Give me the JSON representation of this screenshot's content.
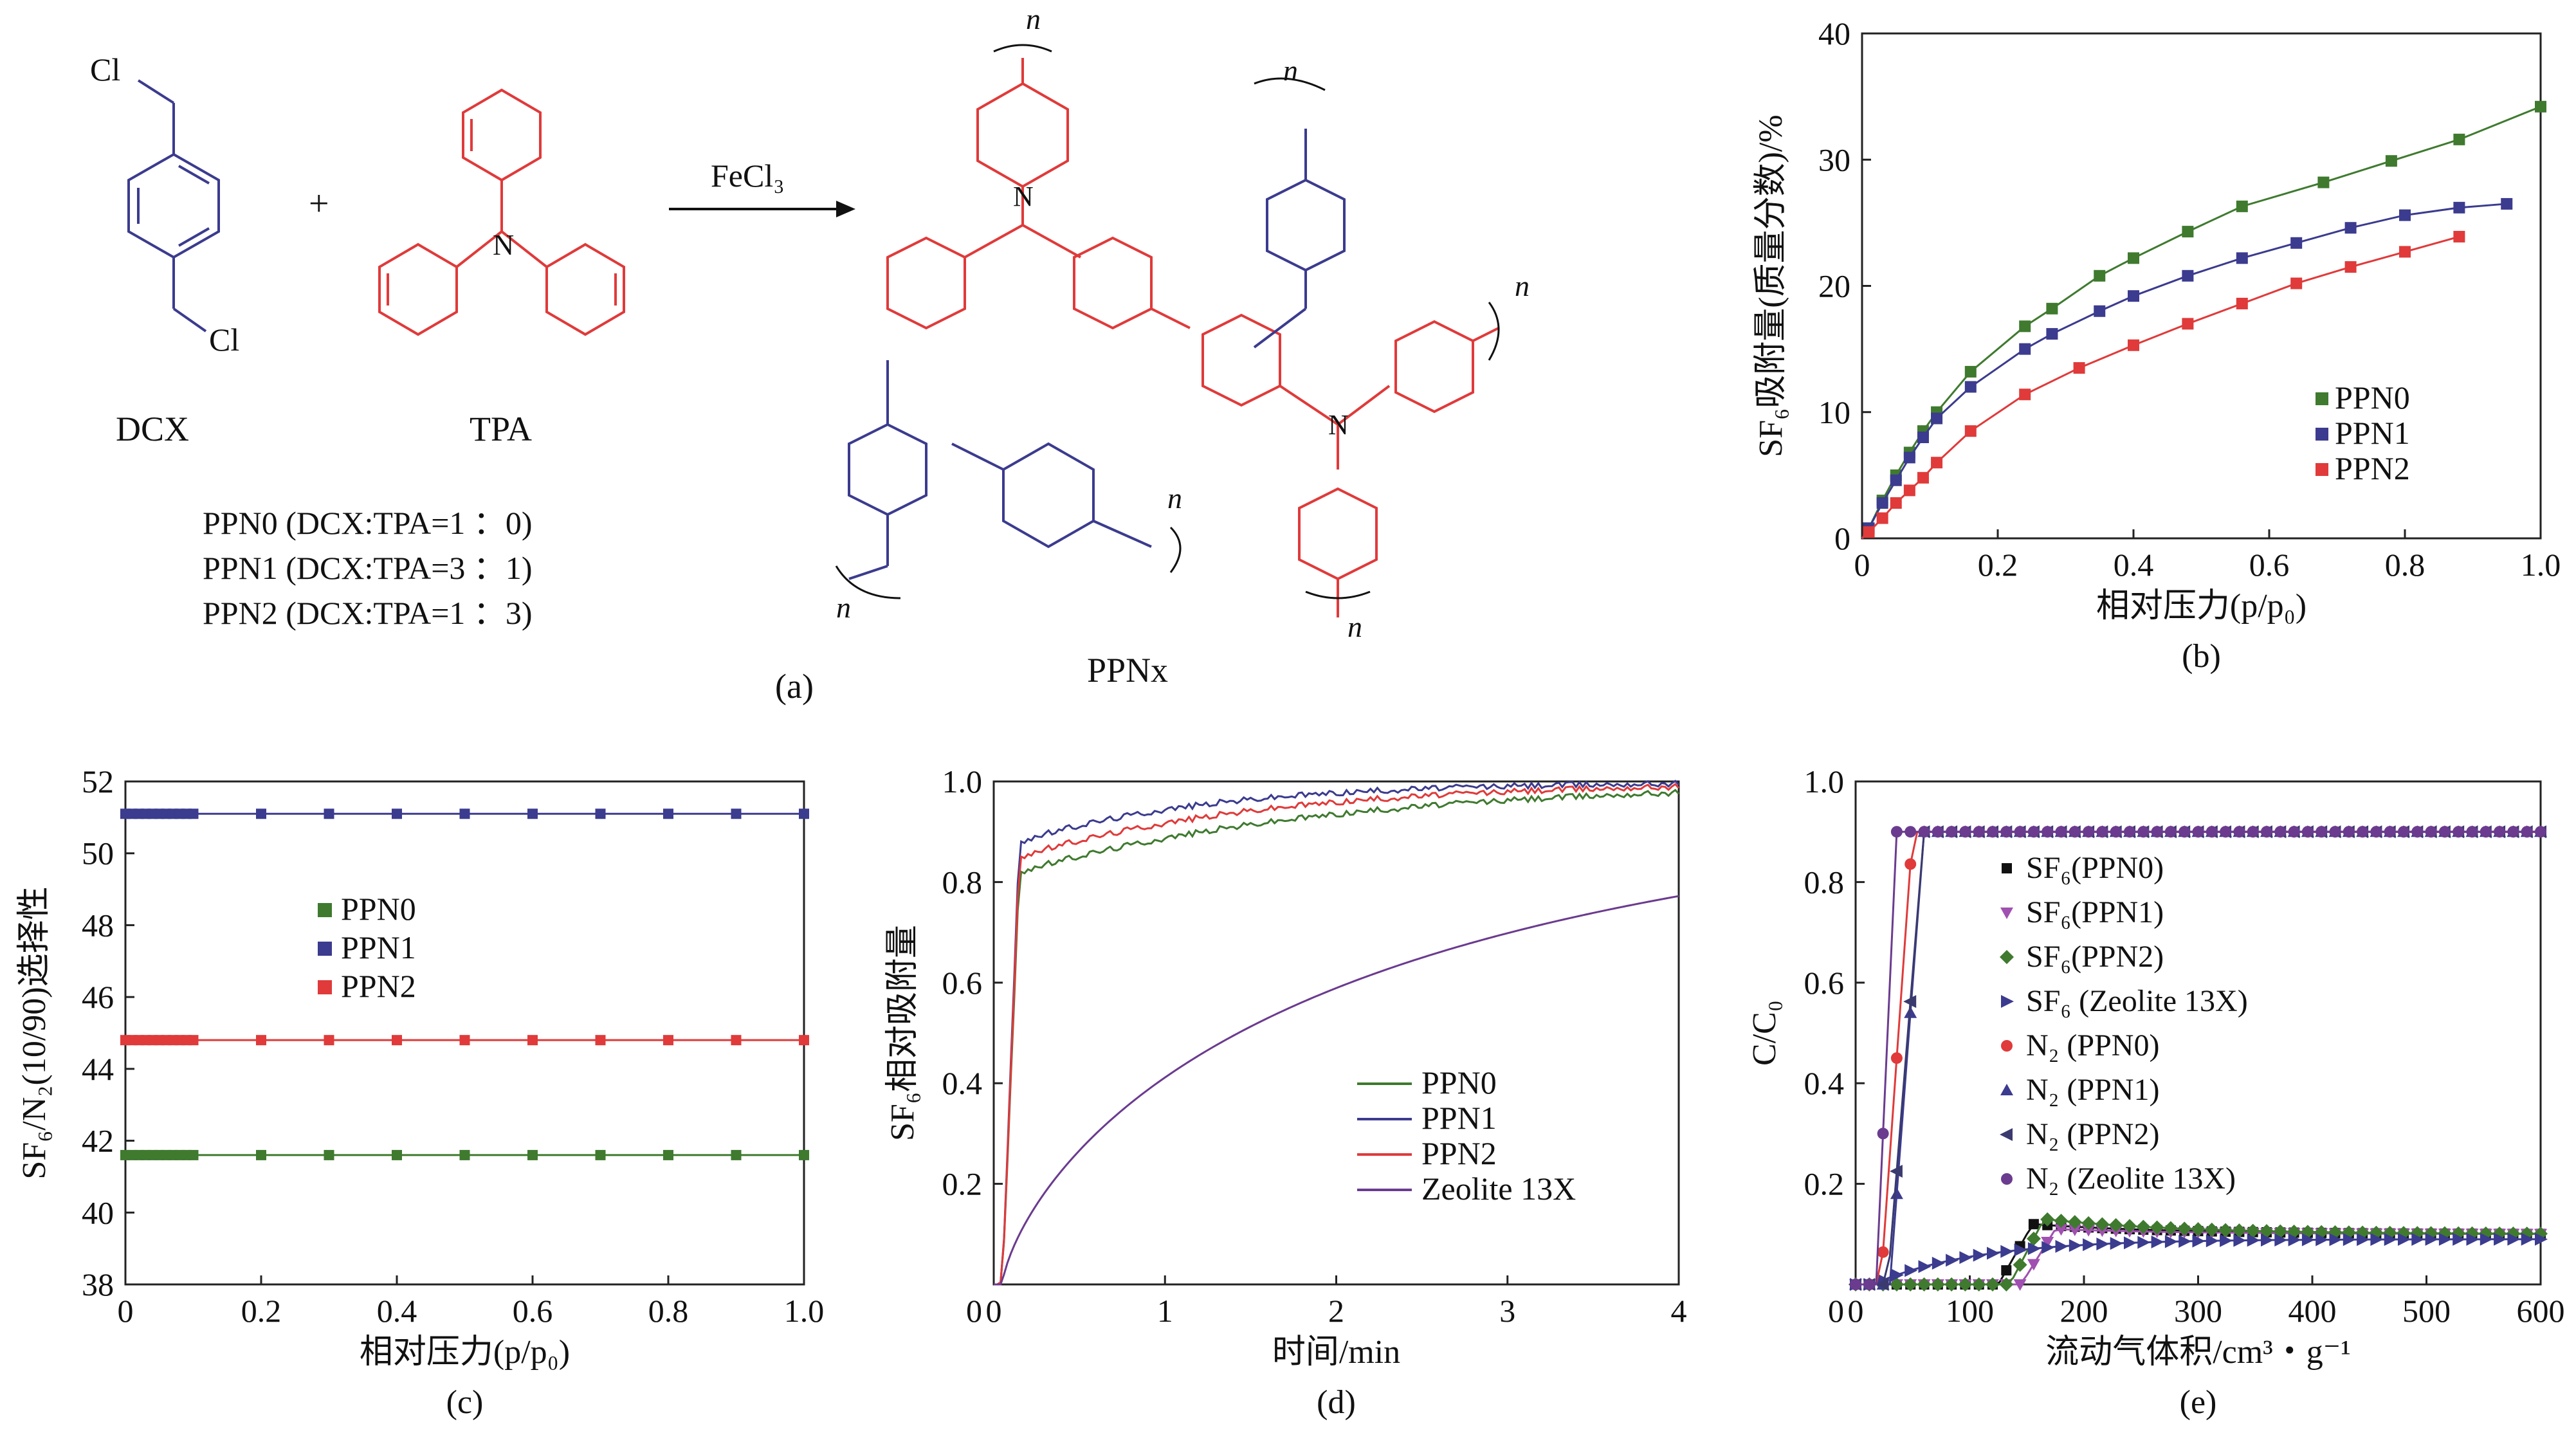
{
  "colors": {
    "blue": "#3b3b8f",
    "red": "#e03a3a",
    "green": "#3f7a2f",
    "purple": "#6b3b8f",
    "black": "#111111"
  },
  "panel_a": {
    "dcx_label": "DCX",
    "tpa_label": "TPA",
    "plus": "+",
    "catalyst": "FeCl₃",
    "cl_top": "Cl",
    "cl_bottom": "Cl",
    "nitrogen": "N",
    "n_symbol": "n",
    "product_label": "PPNx",
    "ratios": [
      "PPN0 (DCX:TPA=1 ：0)",
      "PPN1 (DCX:TPA=3 ：1)",
      "PPN2 (DCX:TPA=1 ：3)"
    ],
    "caption": "(a)"
  },
  "chart_data": [
    {
      "id": "b",
      "type": "line",
      "title": "",
      "xlabel": "相对压力(p/p₀)",
      "ylabel": "SF₆吸附量(质量分数)/%",
      "xlim": [
        0,
        1.0
      ],
      "ylim": [
        0,
        40
      ],
      "xticks": [
        "0",
        "0.2",
        "0.4",
        "0.6",
        "0.8",
        "1.0"
      ],
      "yticks": [
        "0",
        "10",
        "20",
        "30",
        "40"
      ],
      "legend": [
        "PPN0",
        "PPN1",
        "PPN2"
      ],
      "caption": "(b)",
      "series": [
        {
          "name": "PPN0",
          "x": [
            0.01,
            0.03,
            0.05,
            0.07,
            0.09,
            0.11,
            0.16,
            0.24,
            0.28,
            0.35,
            0.4,
            0.48,
            0.56,
            0.68,
            0.78,
            0.88,
            1.0
          ],
          "y": [
            0.8,
            3.0,
            5.0,
            6.8,
            8.5,
            10.0,
            13.2,
            16.8,
            18.2,
            20.8,
            22.2,
            24.3,
            26.3,
            28.2,
            29.9,
            31.6,
            34.2
          ]
        },
        {
          "name": "PPN1",
          "x": [
            0.01,
            0.03,
            0.05,
            0.07,
            0.09,
            0.11,
            0.16,
            0.24,
            0.28,
            0.35,
            0.4,
            0.48,
            0.56,
            0.64,
            0.72,
            0.8,
            0.88,
            0.95
          ],
          "y": [
            0.8,
            2.8,
            4.6,
            6.4,
            8.0,
            9.5,
            12.0,
            15.0,
            16.2,
            18.0,
            19.2,
            20.8,
            22.2,
            23.4,
            24.6,
            25.6,
            26.2,
            26.5
          ]
        },
        {
          "name": "PPN2",
          "x": [
            0.01,
            0.03,
            0.05,
            0.07,
            0.09,
            0.11,
            0.16,
            0.24,
            0.32,
            0.4,
            0.48,
            0.56,
            0.64,
            0.72,
            0.8,
            0.88
          ],
          "y": [
            0.5,
            1.6,
            2.8,
            3.8,
            4.8,
            6.0,
            8.5,
            11.4,
            13.5,
            15.3,
            17.0,
            18.6,
            20.2,
            21.5,
            22.7,
            23.9
          ]
        }
      ]
    },
    {
      "id": "c",
      "type": "line",
      "xlabel": "相对压力(p/p₀)",
      "ylabel": "SF₆/N₂(10/90)选择性",
      "xlim": [
        0,
        1.0
      ],
      "ylim": [
        38,
        52
      ],
      "xticks": [
        "0",
        "0.2",
        "0.4",
        "0.6",
        "0.8",
        "1.0"
      ],
      "yticks": [
        "38",
        "40",
        "42",
        "44",
        "46",
        "48",
        "50",
        "52"
      ],
      "legend": [
        "PPN0",
        "PPN1",
        "PPN2"
      ],
      "caption": "(c)",
      "series": [
        {
          "name": "PPN0",
          "y_const": 41.6
        },
        {
          "name": "PPN1",
          "y_const": 51.1
        },
        {
          "name": "PPN2",
          "y_const": 44.8
        }
      ]
    },
    {
      "id": "d",
      "type": "line",
      "xlabel": "时间/min",
      "ylabel": "SF₆相对吸附量",
      "xlim": [
        0,
        4
      ],
      "ylim": [
        0,
        1.0
      ],
      "xticks": [
        "0",
        "1",
        "2",
        "3",
        "4"
      ],
      "yticks": [
        "0.2",
        "0.4",
        "0.6",
        "0.8",
        "1.0"
      ],
      "legend": [
        "PPN0",
        "PPN1",
        "PPN2",
        "Zeolite 13X"
      ],
      "caption": "(d)",
      "series": [
        {
          "name": "PPN0",
          "model": "fast",
          "plateau": 0.82,
          "rate": 0.55
        },
        {
          "name": "PPN1",
          "model": "fast",
          "plateau": 0.88,
          "rate": 0.9
        },
        {
          "name": "PPN2",
          "model": "fast",
          "plateau": 0.85,
          "rate": 0.7
        },
        {
          "name": "Zeolite 13X",
          "model": "slow",
          "k": 0.55,
          "n": 0.72
        }
      ]
    },
    {
      "id": "e",
      "type": "scatter",
      "xlabel": "流动气体积/cm³・g⁻¹",
      "ylabel": "C/C₀",
      "xlim": [
        0,
        600
      ],
      "ylim": [
        0,
        1.0
      ],
      "xticks": [
        "0",
        "100",
        "200",
        "300",
        "400",
        "500",
        "600"
      ],
      "yticks": [
        "0.2",
        "0.4",
        "0.6",
        "0.8",
        "1.0"
      ],
      "legend": [
        "SF₆(PPN0)",
        "SF₆(PPN1)",
        "SF₆(PPN2)",
        "SF₆ (Zeolite 13X)",
        "N₂ (PPN0)",
        "N₂ (PPN1)",
        "N₂ (PPN2)",
        "N₂ (Zeolite 13X)"
      ],
      "caption": "(e)",
      "series": [
        {
          "name": "SF₆(PPN0)",
          "breakthrough": 125,
          "peak": 0.12,
          "final": 0.1
        },
        {
          "name": "SF₆(PPN1)",
          "breakthrough": 145,
          "peak": 0.11,
          "final": 0.1
        },
        {
          "name": "SF₆(PPN2)",
          "breakthrough": 135,
          "peak": 0.13,
          "final": 0.1
        },
        {
          "name": "SF₆ (Zeolite 13X)",
          "breakthrough": 15,
          "peak": 0.09,
          "final": 0.09
        },
        {
          "name": "N₂ (PPN0)",
          "breakthrough": 22,
          "plateau": 0.9,
          "width": 28
        },
        {
          "name": "N₂ (PPN1)",
          "breakthrough": 30,
          "plateau": 0.9,
          "width": 30
        },
        {
          "name": "N₂ (PPN2)",
          "breakthrough": 28,
          "plateau": 0.9,
          "width": 32
        },
        {
          "name": "N₂ (Zeolite 13X)",
          "breakthrough": 18,
          "plateau": 0.9,
          "width": 18
        }
      ]
    }
  ]
}
